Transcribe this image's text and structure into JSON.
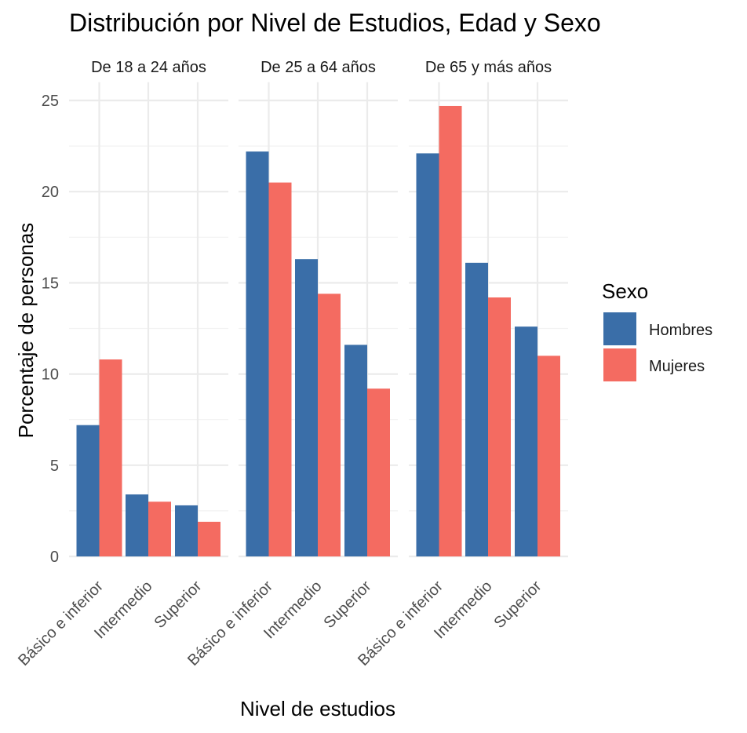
{
  "chart_data": {
    "type": "bar",
    "title": "Distribución por Nivel de Estudios, Edad y Sexo",
    "xlabel": "Nivel de estudios",
    "ylabel": "Porcentaje de personas",
    "ylim": [
      0,
      26
    ],
    "yticks": [
      "0",
      "5",
      "10",
      "15",
      "20",
      "25"
    ],
    "grid": true,
    "legend": {
      "title": "Sexo",
      "placement": "right"
    },
    "categories": [
      "Básico e inferior",
      "Intermedio",
      "Superior"
    ],
    "colors": {
      "Hombres": "#3a6ea8",
      "Mujeres": "#f46b61"
    },
    "panels": [
      {
        "label": "De 18 a 24 años",
        "series": [
          {
            "name": "Hombres",
            "values": [
              7.2,
              3.4,
              2.8
            ]
          },
          {
            "name": "Mujeres",
            "values": [
              10.8,
              3.0,
              1.9
            ]
          }
        ]
      },
      {
        "label": "De 25 a 64 años",
        "series": [
          {
            "name": "Hombres",
            "values": [
              22.2,
              16.3,
              11.6
            ]
          },
          {
            "name": "Mujeres",
            "values": [
              20.5,
              14.4,
              9.2
            ]
          }
        ]
      },
      {
        "label": "De 65 y más años",
        "series": [
          {
            "name": "Hombres",
            "values": [
              22.1,
              16.1,
              12.6
            ]
          },
          {
            "name": "Mujeres",
            "values": [
              24.7,
              14.2,
              11.0
            ]
          }
        ]
      }
    ]
  }
}
